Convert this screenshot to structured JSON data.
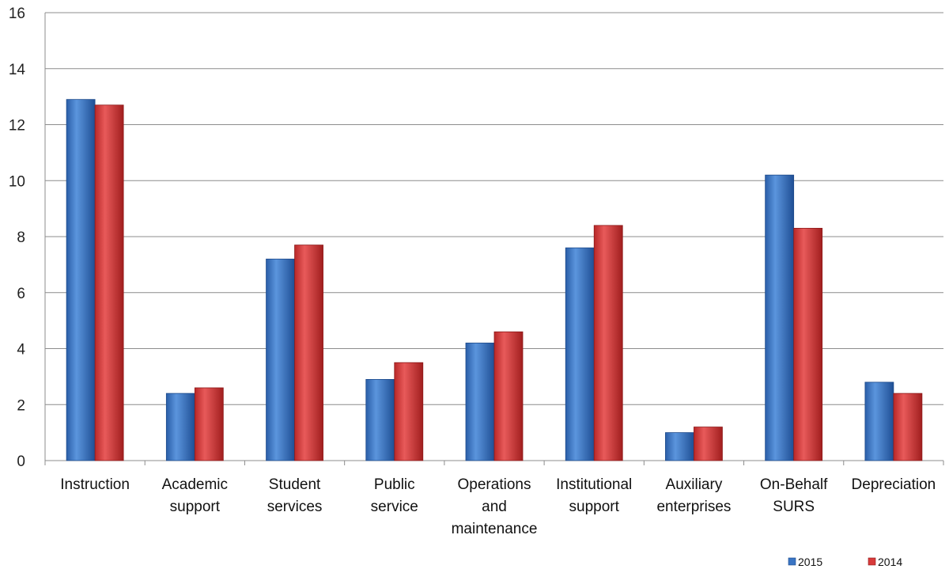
{
  "chart_data": {
    "type": "bar",
    "categories": [
      [
        "Instruction"
      ],
      [
        "Academic",
        "support"
      ],
      [
        "Student",
        "services"
      ],
      [
        "Public",
        "service"
      ],
      [
        "Operations",
        "and",
        "maintenance"
      ],
      [
        "Institutional",
        "support"
      ],
      [
        "Auxiliary",
        "enterprises"
      ],
      [
        "On-Behalf",
        "SURS"
      ],
      [
        "Depreciation"
      ]
    ],
    "series": [
      {
        "name": "2015",
        "color": "#3a75c4",
        "values": [
          12.9,
          2.4,
          7.2,
          2.9,
          4.2,
          7.6,
          1.0,
          10.2,
          2.8
        ]
      },
      {
        "name": "2014",
        "color": "#d83b3b",
        "values": [
          12.7,
          2.6,
          7.7,
          3.5,
          4.6,
          8.4,
          1.2,
          8.3,
          2.4
        ]
      }
    ],
    "yticks": [
      "0",
      "2",
      "4",
      "6",
      "8",
      "10",
      "12",
      "14",
      "16"
    ],
    "ylim": [
      0,
      16
    ],
    "title": "",
    "xlabel": "",
    "ylabel": "",
    "grid": true,
    "legend_position": "bottom-right"
  }
}
